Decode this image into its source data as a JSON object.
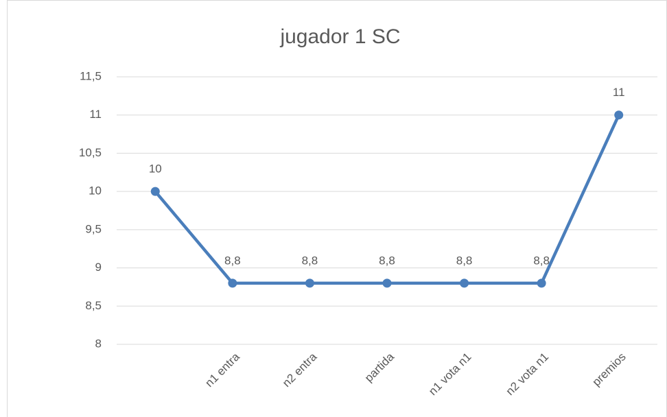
{
  "chart_data": {
    "type": "line",
    "title": "jugador 1 SC",
    "categories": [
      null,
      "n1 entra",
      "n2 entra",
      "partida",
      "n1 vota n1",
      "n2 vota n1",
      "premios"
    ],
    "series": [
      {
        "color": "#4a7ebb",
        "values": [
          10,
          8.8,
          8.8,
          8.8,
          8.8,
          8.8,
          11
        ],
        "value_labels": [
          "10",
          "8,8",
          "8,8",
          "8,8",
          "8,8",
          "8,8",
          "11"
        ]
      }
    ],
    "ylim": [
      8,
      11.5
    ],
    "yticks": [
      8,
      {
        "value": 8.5,
        "label": "8,5"
      },
      9,
      {
        "value": 9.5,
        "label": "9,5"
      },
      10,
      {
        "value": 10.5,
        "label": "10,5"
      },
      11,
      {
        "value": 11.5,
        "label": "11,5"
      }
    ],
    "grid": true
  }
}
